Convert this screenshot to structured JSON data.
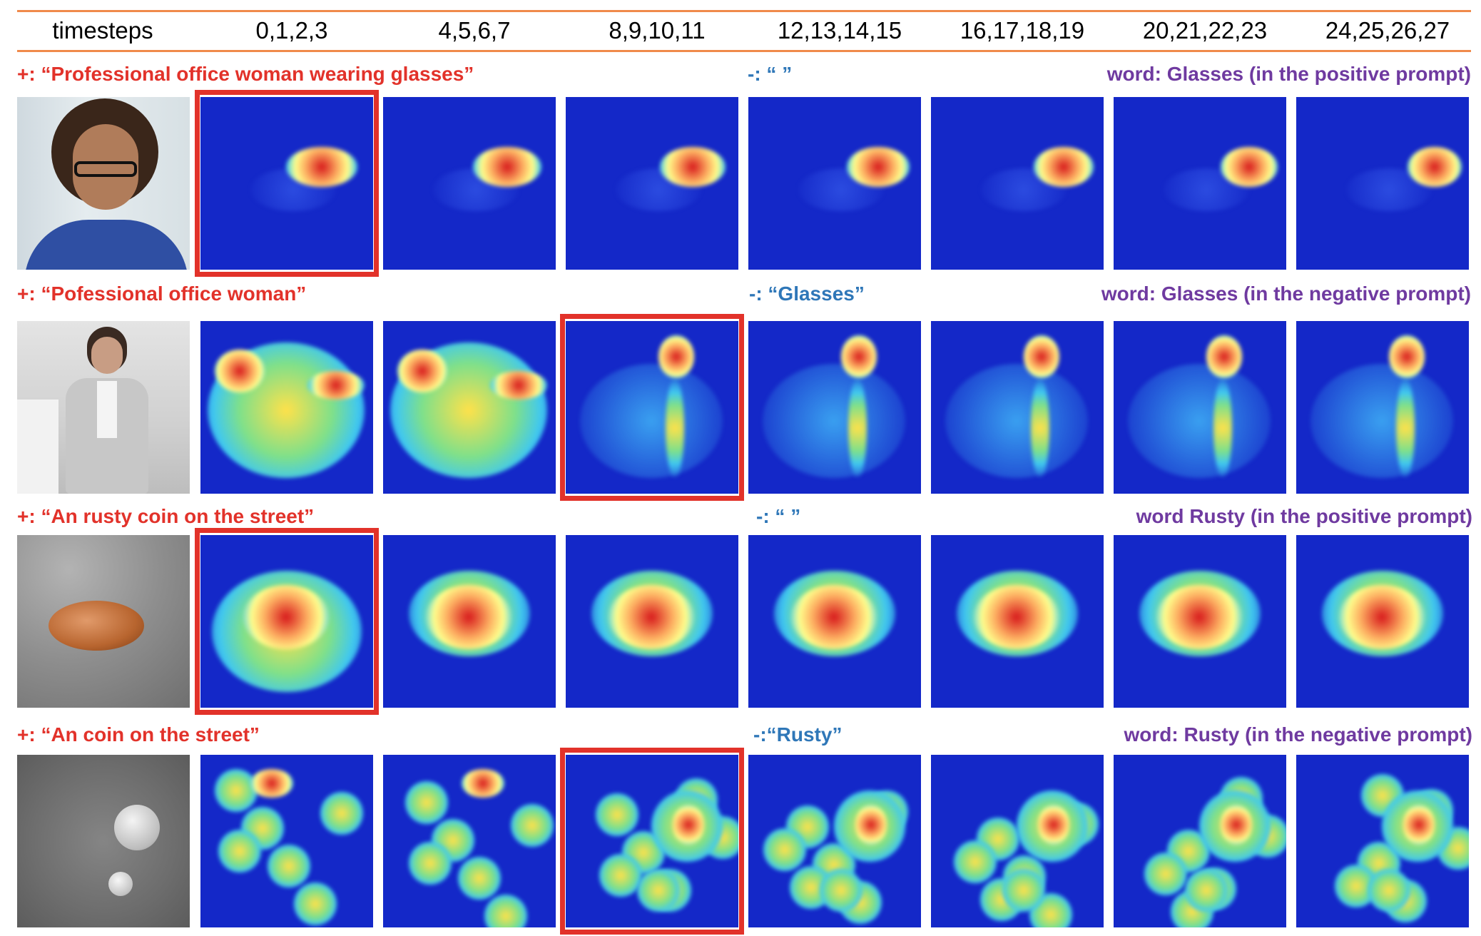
{
  "header": {
    "label": "timesteps",
    "steps": [
      "0,1,2,3",
      "4,5,6,7",
      "8,9,10,11",
      "12,13,14,15",
      "16,17,18,19",
      "20,21,22,23",
      "24,25,26,27"
    ]
  },
  "rows": [
    {
      "positive": "+:  “Professional office woman wearing glasses”",
      "negative": "-:  “ ”",
      "word": "word: Glasses (in the positive prompt)",
      "photo": "office woman wearing glasses",
      "highlight_step": 0
    },
    {
      "positive": "+:  “Pofessional office woman”",
      "negative": "-:  “Glasses”",
      "word": "word: Glasses (in the negative prompt)",
      "photo": "office woman standing",
      "highlight_step": 2
    },
    {
      "positive": "+:  “An rusty coin on the street”",
      "negative": "-:  “ ”",
      "word": "word Rusty (in the positive prompt)",
      "photo": "rusty coin on street",
      "highlight_step": 0
    },
    {
      "positive": "+:  “An coin on the street”",
      "negative": "-:“Rusty”",
      "word": "word: Rusty (in the negative prompt)",
      "photo": "coins on street",
      "highlight_step": 2
    }
  ],
  "colors": {
    "positive": "#e2322a",
    "negative": "#2f77b8",
    "word": "#6f3aa0",
    "rule": "#f08a4b",
    "highlight": "#e2322a"
  }
}
